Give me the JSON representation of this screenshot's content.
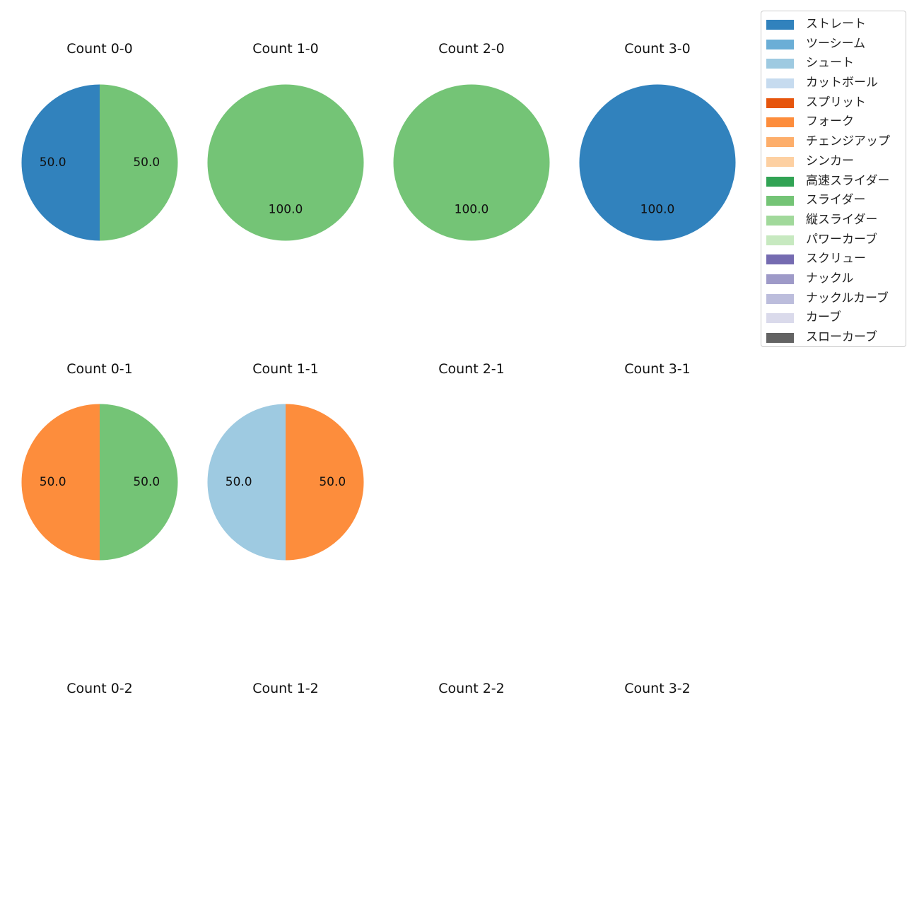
{
  "chart_data": {
    "type": "pie",
    "value_format": "percent",
    "legend_placement": "top-right",
    "legend": [
      {
        "name": "ストレート",
        "color": "#3182bd"
      },
      {
        "name": "ツーシーム",
        "color": "#6baed6"
      },
      {
        "name": "シュート",
        "color": "#9ecae1"
      },
      {
        "name": "カットボール",
        "color": "#c6dbef"
      },
      {
        "name": "スプリット",
        "color": "#e6550d"
      },
      {
        "name": "フォーク",
        "color": "#fd8d3c"
      },
      {
        "name": "チェンジアップ",
        "color": "#fdae6b"
      },
      {
        "name": "シンカー",
        "color": "#fdd0a2"
      },
      {
        "name": "高速スライダー",
        "color": "#31a354"
      },
      {
        "name": "スライダー",
        "color": "#74c476"
      },
      {
        "name": "縦スライダー",
        "color": "#a1d99b"
      },
      {
        "name": "パワーカーブ",
        "color": "#c7e9c0"
      },
      {
        "name": "スクリュー",
        "color": "#756bb1"
      },
      {
        "name": "ナックル",
        "color": "#9e9ac8"
      },
      {
        "name": "ナックルカーブ",
        "color": "#bcbddc"
      },
      {
        "name": "カーブ",
        "color": "#dadaeb"
      },
      {
        "name": "スローカーブ",
        "color": "#636363"
      }
    ],
    "panels": [
      {
        "title": "Count 0-0",
        "slices": [
          {
            "pitch": "ストレート",
            "value": 50.0,
            "label": "50.0"
          },
          {
            "pitch": "スライダー",
            "value": 50.0,
            "label": "50.0"
          }
        ]
      },
      {
        "title": "Count 1-0",
        "slices": [
          {
            "pitch": "スライダー",
            "value": 100.0,
            "label": "100.0"
          }
        ]
      },
      {
        "title": "Count 2-0",
        "slices": [
          {
            "pitch": "スライダー",
            "value": 100.0,
            "label": "100.0"
          }
        ]
      },
      {
        "title": "Count 3-0",
        "slices": [
          {
            "pitch": "ストレート",
            "value": 100.0,
            "label": "100.0"
          }
        ]
      },
      {
        "title": "Count 0-1",
        "slices": [
          {
            "pitch": "フォーク",
            "value": 50.0,
            "label": "50.0"
          },
          {
            "pitch": "スライダー",
            "value": 50.0,
            "label": "50.0"
          }
        ]
      },
      {
        "title": "Count 1-1",
        "slices": [
          {
            "pitch": "シュート",
            "value": 50.0,
            "label": "50.0"
          },
          {
            "pitch": "フォーク",
            "value": 50.0,
            "label": "50.0"
          }
        ]
      },
      {
        "title": "Count 2-1",
        "slices": []
      },
      {
        "title": "Count 3-1",
        "slices": []
      },
      {
        "title": "Count 0-2",
        "slices": []
      },
      {
        "title": "Count 1-2",
        "slices": []
      },
      {
        "title": "Count 2-2",
        "slices": []
      },
      {
        "title": "Count 3-2",
        "slices": []
      }
    ]
  }
}
